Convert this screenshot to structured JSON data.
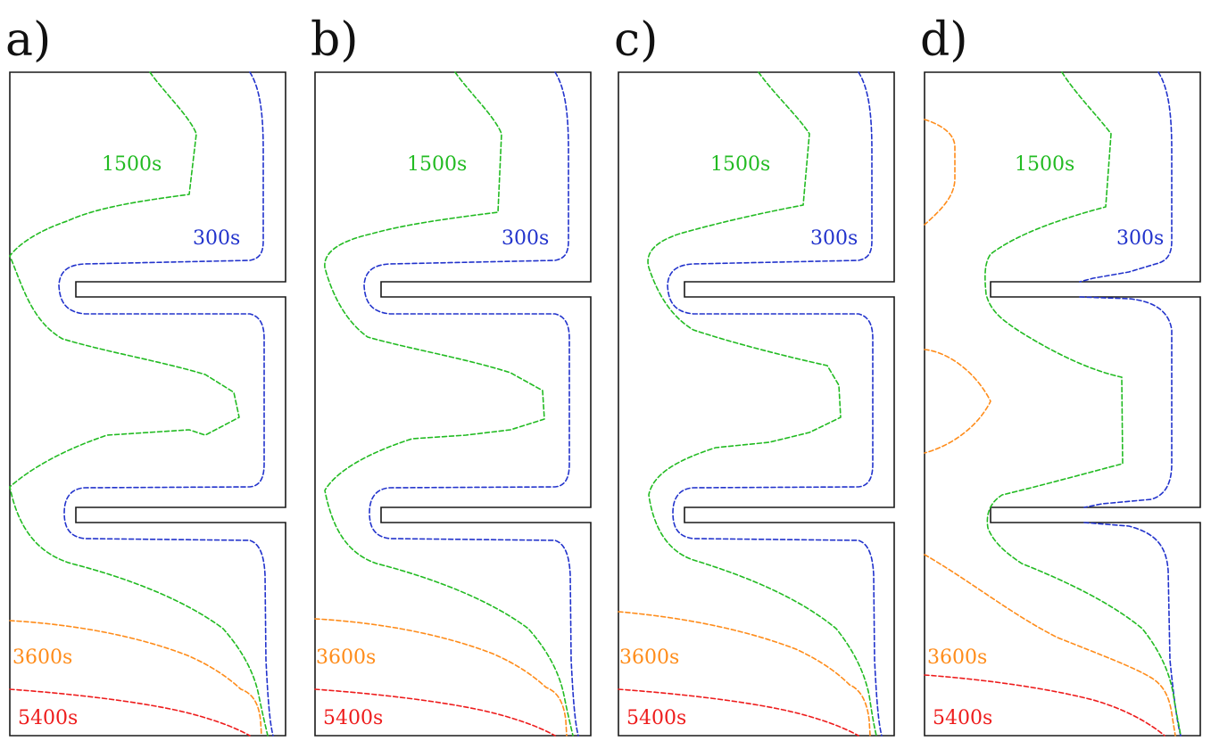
{
  "colors": {
    "300s": "#2233cc",
    "1500s": "#22bb22",
    "3600s": "#ff8c1a",
    "5400s": "#ee1c1c",
    "outline": "#1a1a1a"
  },
  "panels": [
    {
      "letter": "a)",
      "labels": [
        "300s",
        "1500s",
        "3600s",
        "5400s"
      ]
    },
    {
      "letter": "b)",
      "labels": [
        "300s",
        "1500s",
        "3600s",
        "5400s"
      ]
    },
    {
      "letter": "c)",
      "labels": [
        "300s",
        "1500s",
        "3600s",
        "5400s"
      ]
    },
    {
      "letter": "d)",
      "labels": [
        "300s",
        "1500s",
        "3600s",
        "5400s"
      ]
    }
  ]
}
